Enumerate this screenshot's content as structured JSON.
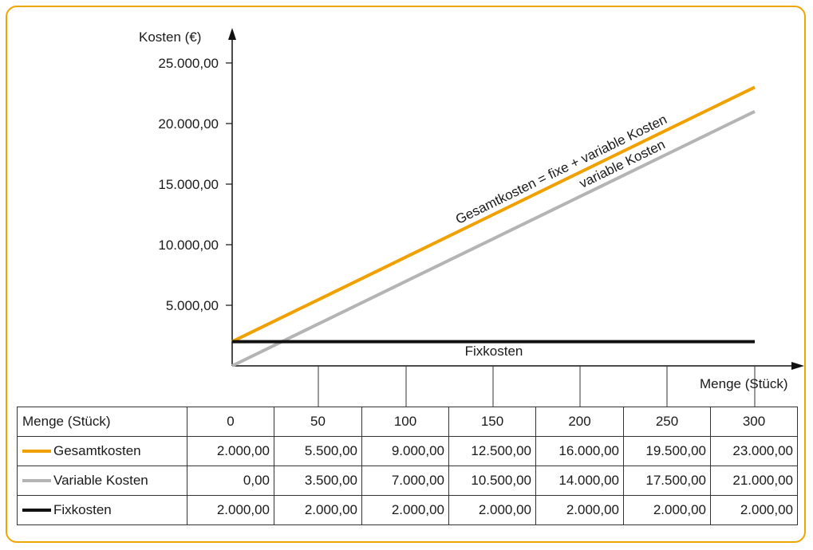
{
  "chart_data": {
    "type": "line",
    "ylabel": "Kosten (€)",
    "xlabel": "Menge (Stück)",
    "ylim": [
      0,
      25000
    ],
    "xlim": [
      0,
      300
    ],
    "y_ticks": [
      {
        "value": 5000,
        "label": "5.000,00"
      },
      {
        "value": 10000,
        "label": "10.000,00"
      },
      {
        "value": 15000,
        "label": "15.000,00"
      },
      {
        "value": 20000,
        "label": "20.000,00"
      },
      {
        "value": 25000,
        "label": "25.000,00"
      }
    ],
    "x": [
      0,
      50,
      100,
      150,
      200,
      250,
      300
    ],
    "series": [
      {
        "key": "gesamt",
        "legend": "Gesamtkosten",
        "name": "Gesamtkosten = fixe + variable Kosten",
        "color": "#f0a000",
        "values": [
          2000,
          5500,
          9000,
          12500,
          16000,
          19500,
          23000
        ]
      },
      {
        "key": "variabel",
        "legend": "Variable Kosten",
        "name": "variable Kosten",
        "color": "#b4b4b4",
        "values": [
          0,
          3500,
          7000,
          10500,
          14000,
          17500,
          21000
        ]
      },
      {
        "key": "fix",
        "legend": "Fixkosten",
        "name": "Fixkosten",
        "color": "#111111",
        "values": [
          2000,
          2000,
          2000,
          2000,
          2000,
          2000,
          2000
        ]
      }
    ],
    "grid": false,
    "legend": "table-below"
  },
  "table": {
    "header_label": "Menge (Stück)",
    "columns": [
      "0",
      "50",
      "100",
      "150",
      "200",
      "250",
      "300"
    ],
    "rows": [
      {
        "label": "Gesamtkosten",
        "color": "#f0a000",
        "cells": [
          "2.000,00",
          "5.500,00",
          "9.000,00",
          "12.500,00",
          "16.000,00",
          "19.500,00",
          "23.000,00"
        ]
      },
      {
        "label": "Variable Kosten",
        "color": "#b4b4b4",
        "cells": [
          "0,00",
          "3.500,00",
          "7.000,00",
          "10.500,00",
          "14.000,00",
          "17.500,00",
          "21.000,00"
        ]
      },
      {
        "label": "Fixkosten",
        "color": "#111111",
        "cells": [
          "2.000,00",
          "2.000,00",
          "2.000,00",
          "2.000,00",
          "2.000,00",
          "2.000,00",
          "2.000,00"
        ]
      }
    ]
  },
  "colors": {
    "frame": "#f0a500"
  }
}
